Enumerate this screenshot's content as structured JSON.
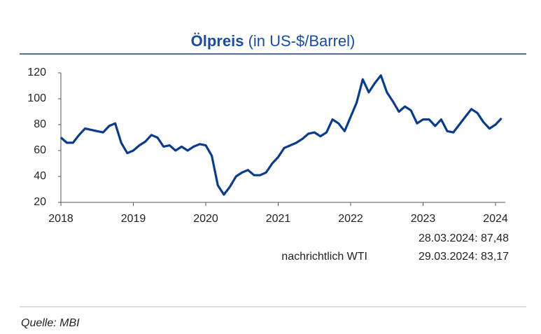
{
  "chart_data": {
    "type": "line",
    "title": "Ölpreis",
    "subtitle": "(in US-$/Barrel)",
    "x": [
      2018,
      2018.083,
      2018.167,
      2018.25,
      2018.333,
      2018.417,
      2018.5,
      2018.583,
      2018.667,
      2018.75,
      2018.833,
      2018.917,
      2019,
      2019.083,
      2019.167,
      2019.25,
      2019.333,
      2019.417,
      2019.5,
      2019.583,
      2019.667,
      2019.75,
      2019.833,
      2019.917,
      2020,
      2020.083,
      2020.167,
      2020.25,
      2020.333,
      2020.417,
      2020.5,
      2020.583,
      2020.667,
      2020.75,
      2020.833,
      2020.917,
      2021,
      2021.083,
      2021.167,
      2021.25,
      2021.333,
      2021.417,
      2021.5,
      2021.583,
      2021.667,
      2021.75,
      2021.833,
      2021.917,
      2022,
      2022.083,
      2022.167,
      2022.25,
      2022.333,
      2022.417,
      2022.5,
      2022.583,
      2022.667,
      2022.75,
      2022.833,
      2022.917,
      2023,
      2023.083,
      2023.167,
      2023.25,
      2023.333,
      2023.417,
      2023.5,
      2023.583,
      2023.667,
      2023.75,
      2023.833,
      2023.917,
      2024,
      2024.083
    ],
    "series": [
      {
        "color": "#0b3c8c",
        "values": [
          70,
          66,
          66,
          72,
          77,
          76,
          75,
          74,
          79,
          81,
          66,
          58,
          60,
          64,
          67,
          72,
          70,
          63,
          64,
          60,
          63,
          60,
          63,
          65,
          64,
          56,
          33,
          26,
          32,
          40,
          43,
          45,
          41,
          41,
          43,
          50,
          55,
          62,
          64,
          66,
          69,
          73,
          74,
          71,
          74,
          84,
          81,
          75,
          86,
          97,
          115,
          105,
          112,
          118,
          105,
          98,
          90,
          94,
          91,
          81,
          84,
          84,
          79,
          84,
          75,
          74,
          80,
          86,
          92,
          89,
          82,
          77,
          80,
          85
        ]
      }
    ],
    "xlim": [
      2018,
      2024.15
    ],
    "xticks": [
      2018,
      2019,
      2020,
      2021,
      2022,
      2023,
      2024
    ],
    "ylim": [
      20,
      120
    ],
    "yticks": [
      20,
      40,
      60,
      80,
      100,
      120
    ],
    "annotations": [
      "28.03.2024: 87,48",
      "nachrichtlich WTI",
      "29.03.2024: 83,17"
    ],
    "source": "Quelle: MBI"
  }
}
